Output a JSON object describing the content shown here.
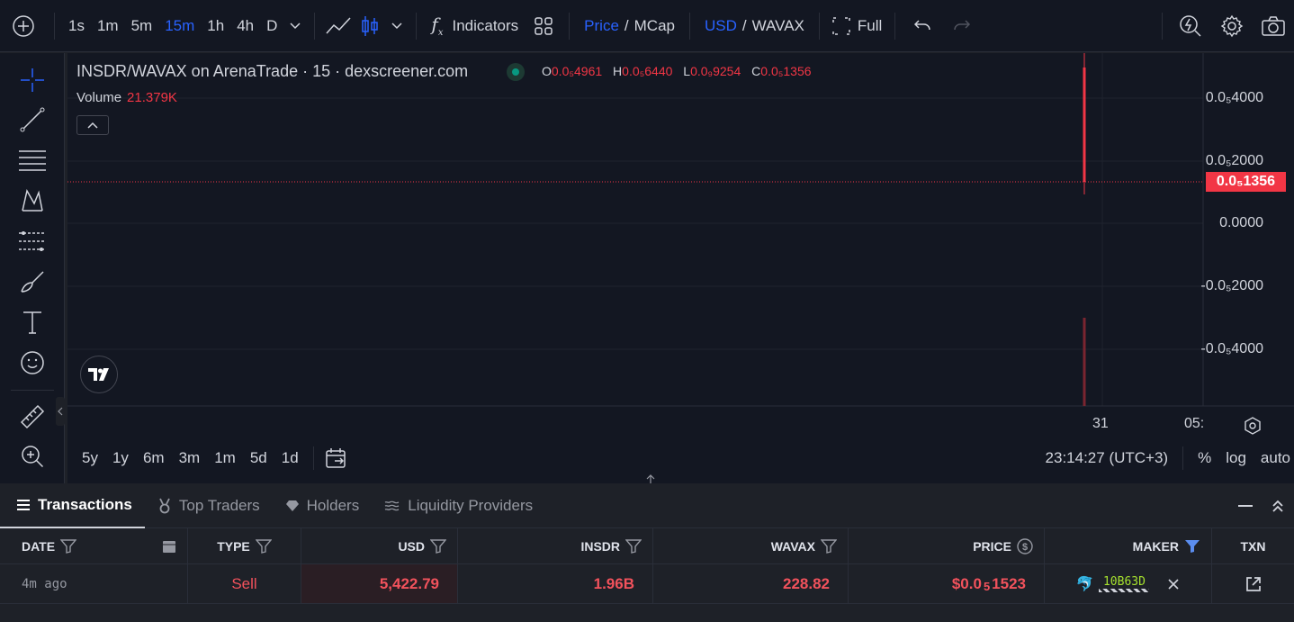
{
  "toolbar": {
    "timeframes": [
      "1s",
      "1m",
      "5m",
      "15m",
      "1h",
      "4h",
      "D"
    ],
    "active_timeframe": "15m",
    "indicators_label": "Indicators",
    "price_label": "Price",
    "mcap_label": "MCap",
    "usd_label": "USD",
    "wavax_label": "WAVAX",
    "full_label": "Full",
    "sep": "/"
  },
  "chart": {
    "title": "INSDR/WAVAX on ArenaTrade · 15 · dexscreener.com",
    "ohlc": {
      "o_label": "O",
      "o": "0.0₅4961",
      "h_label": "H",
      "h": "0.0₅6440",
      "l_label": "L",
      "l": "0.0₉9254",
      "c_label": "C",
      "c": "0.0₅1356"
    },
    "volume_label": "Volume",
    "volume_value": "21.379K",
    "y_ticks": [
      "0.0₅4000",
      "0.0₅2000",
      "0.0000",
      "-0.0₅2000",
      "-0.0₅4000"
    ],
    "current_price": "0.0₅1356",
    "x_ticks": [
      "31",
      "05:"
    ],
    "ranges": [
      "5y",
      "1y",
      "6m",
      "3m",
      "1m",
      "5d",
      "1d"
    ],
    "clock": "23:14:27 (UTC+3)",
    "percent_label": "%",
    "log_label": "log",
    "auto_label": "auto",
    "candle_color": "#f23645"
  },
  "panel": {
    "tabs": [
      "Transactions",
      "Top Traders",
      "Holders",
      "Liquidity Providers"
    ],
    "columns": [
      "DATE",
      "TYPE",
      "USD",
      "INSDR",
      "WAVAX",
      "PRICE",
      "MAKER",
      "TXN"
    ],
    "rows": [
      {
        "date": "4m ago",
        "type": "Sell",
        "usd": "5,422.79",
        "insdr": "1.96B",
        "wavax": "228.82",
        "price_prefix": "$0.0",
        "price_sub": "5",
        "price_rest": "1523",
        "maker": "10B63D"
      }
    ]
  }
}
